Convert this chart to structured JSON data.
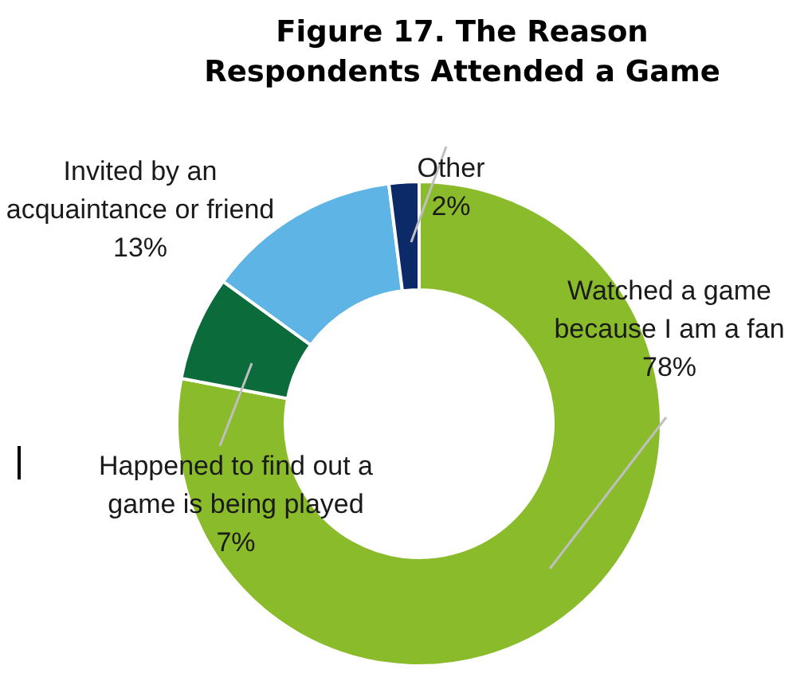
{
  "chart_data": {
    "type": "donut",
    "title": "Figure 17. The Reason\nRespondents Attended a Game",
    "categories": [
      "Watched a game\nbecause I am a fan",
      "Happened to find out a\ngame is being played",
      "Invited by an\nacquaintance or friend",
      "Other"
    ],
    "values": [
      78,
      7,
      13,
      2
    ],
    "colors": [
      "#8abb2a",
      "#0b6b3a",
      "#5db4e5",
      "#0c2a68"
    ],
    "value_labels": [
      "78%",
      "7%",
      "13%",
      "2%"
    ]
  }
}
